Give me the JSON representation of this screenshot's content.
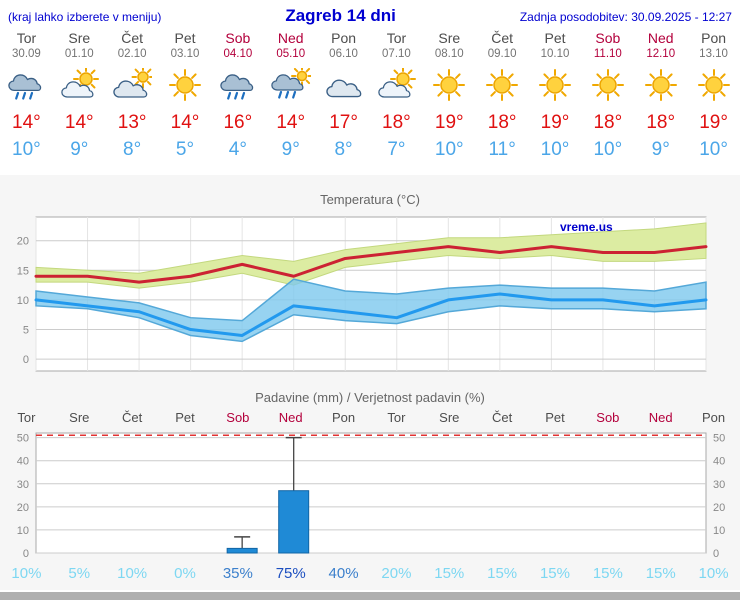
{
  "header": {
    "menu_hint": "(kraj lahko izberete v meniju)",
    "title": "Zagreb 14 dni",
    "updated": "Zadnja posodobitev: 30.09.2025 - 12:27"
  },
  "colors": {
    "header_blue": "#0000d0",
    "weekend_red": "#b3003c",
    "day_gray": "#4d4d4d",
    "high_red": "#e01111",
    "low_blue": "#4ba6e8",
    "line_red": "#cc2233",
    "line_blue": "#2299ee",
    "band_yellow": "#dceca2",
    "band_yellow_edge": "#c3d87e",
    "band_blue": "rgba(125,200,238,0.8)",
    "band_blue_edge": "#54a8d8",
    "bar_blue": "#1f8ad6",
    "bar_blue_edge": "#1265a5",
    "dashed_red": "#e23333",
    "prob_low": "#7dd7f2",
    "prob_mid": "#3c80cc",
    "prob_high": "#1c4fc0",
    "watermark_blue": "#0000cc"
  },
  "days": [
    {
      "name": "Tor",
      "date": "30.09",
      "weekend": false,
      "icon": "rain",
      "high": "14°",
      "low": "10°"
    },
    {
      "name": "Sre",
      "date": "01.10",
      "weekend": false,
      "icon": "partly-cloudy",
      "high": "14°",
      "low": "9°"
    },
    {
      "name": "Čet",
      "date": "02.10",
      "weekend": false,
      "icon": "mostly-cloudy",
      "high": "13°",
      "low": "8°"
    },
    {
      "name": "Pet",
      "date": "03.10",
      "weekend": false,
      "icon": "sunny",
      "high": "14°",
      "low": "5°"
    },
    {
      "name": "Sob",
      "date": "04.10",
      "weekend": true,
      "icon": "rain",
      "high": "16°",
      "low": "4°"
    },
    {
      "name": "Ned",
      "date": "05.10",
      "weekend": true,
      "icon": "rain-sun",
      "high": "14°",
      "low": "9°"
    },
    {
      "name": "Pon",
      "date": "06.10",
      "weekend": false,
      "icon": "cloudy",
      "high": "17°",
      "low": "8°"
    },
    {
      "name": "Tor",
      "date": "07.10",
      "weekend": false,
      "icon": "partly-cloudy",
      "high": "18°",
      "low": "7°"
    },
    {
      "name": "Sre",
      "date": "08.10",
      "weekend": false,
      "icon": "sunny",
      "high": "19°",
      "low": "10°"
    },
    {
      "name": "Čet",
      "date": "09.10",
      "weekend": false,
      "icon": "sunny",
      "high": "18°",
      "low": "11°"
    },
    {
      "name": "Pet",
      "date": "10.10",
      "weekend": false,
      "icon": "sunny",
      "high": "19°",
      "low": "10°"
    },
    {
      "name": "Sob",
      "date": "11.10",
      "weekend": true,
      "icon": "sunny",
      "high": "18°",
      "low": "10°"
    },
    {
      "name": "Ned",
      "date": "12.10",
      "weekend": true,
      "icon": "sunny",
      "high": "18°",
      "low": "9°"
    },
    {
      "name": "Pon",
      "date": "13.10",
      "weekend": false,
      "icon": "sunny",
      "high": "19°",
      "low": "10°"
    }
  ],
  "temp_chart": {
    "title": "Temperatura (°C)",
    "watermark": "vreme.us",
    "yticks": [
      0,
      5,
      10,
      15,
      20
    ]
  },
  "precip_chart": {
    "title": "Padavine (mm) / Verjetnost padavin (%)",
    "yticks": [
      0,
      10,
      20,
      30,
      40,
      50
    ]
  },
  "chart_data": [
    {
      "type": "line",
      "title": "Temperatura (°C)",
      "categories": [
        "Tor",
        "Sre",
        "Čet",
        "Pet",
        "Sob",
        "Ned",
        "Pon",
        "Tor",
        "Sre",
        "Čet",
        "Pet",
        "Sob",
        "Ned",
        "Pon"
      ],
      "series": [
        {
          "name": "max_temp",
          "values": [
            14,
            14,
            13,
            14,
            16,
            14,
            17,
            18,
            19,
            18,
            19,
            18,
            18,
            19
          ],
          "color": "#cc2233"
        },
        {
          "name": "min_temp",
          "values": [
            10,
            9,
            8,
            5,
            4,
            9,
            8,
            7,
            10,
            11,
            10,
            10,
            9,
            10
          ],
          "color": "#2299ee"
        },
        {
          "name": "max_band_upper",
          "values": [
            15.5,
            15,
            14.5,
            16,
            17.5,
            16.5,
            18.5,
            19.5,
            20.5,
            20.5,
            21,
            21.5,
            22,
            23
          ]
        },
        {
          "name": "max_band_lower",
          "values": [
            13,
            13,
            12,
            13,
            14.5,
            12.5,
            15.5,
            16.5,
            17.5,
            17,
            17.5,
            16.5,
            16.5,
            17
          ]
        },
        {
          "name": "min_band_upper",
          "values": [
            11.5,
            10.5,
            9.5,
            7,
            6.5,
            13.5,
            11.5,
            11,
            12,
            12.5,
            12,
            12,
            11.5,
            13
          ]
        },
        {
          "name": "min_band_lower",
          "values": [
            9,
            8.5,
            7,
            4,
            3,
            7.5,
            6.5,
            6,
            8,
            9,
            8.5,
            8.5,
            8,
            8.5
          ]
        }
      ],
      "ylim": [
        -2,
        24
      ],
      "grid": true,
      "ylabel": "°C"
    },
    {
      "type": "bar",
      "title": "Padavine (mm) / Verjetnost padavin (%)",
      "categories": [
        "Tor",
        "Sre",
        "Čet",
        "Pet",
        "Sob",
        "Ned",
        "Pon",
        "Tor",
        "Sre",
        "Čet",
        "Pet",
        "Sob",
        "Ned",
        "Pon"
      ],
      "values": [
        0,
        0,
        0,
        0,
        2,
        27,
        0,
        0,
        0,
        0,
        0,
        0,
        0,
        0
      ],
      "whisker_max": [
        0,
        0,
        0,
        0,
        7,
        50,
        0,
        0,
        0,
        0,
        0,
        0,
        0,
        0
      ],
      "probability": [
        "10%",
        "5%",
        "10%",
        "0%",
        "35%",
        "75%",
        "40%",
        "20%",
        "15%",
        "15%",
        "15%",
        "15%",
        "15%",
        "10%"
      ],
      "ylim": [
        0,
        52
      ],
      "grid": true,
      "ylabel": "mm"
    }
  ]
}
